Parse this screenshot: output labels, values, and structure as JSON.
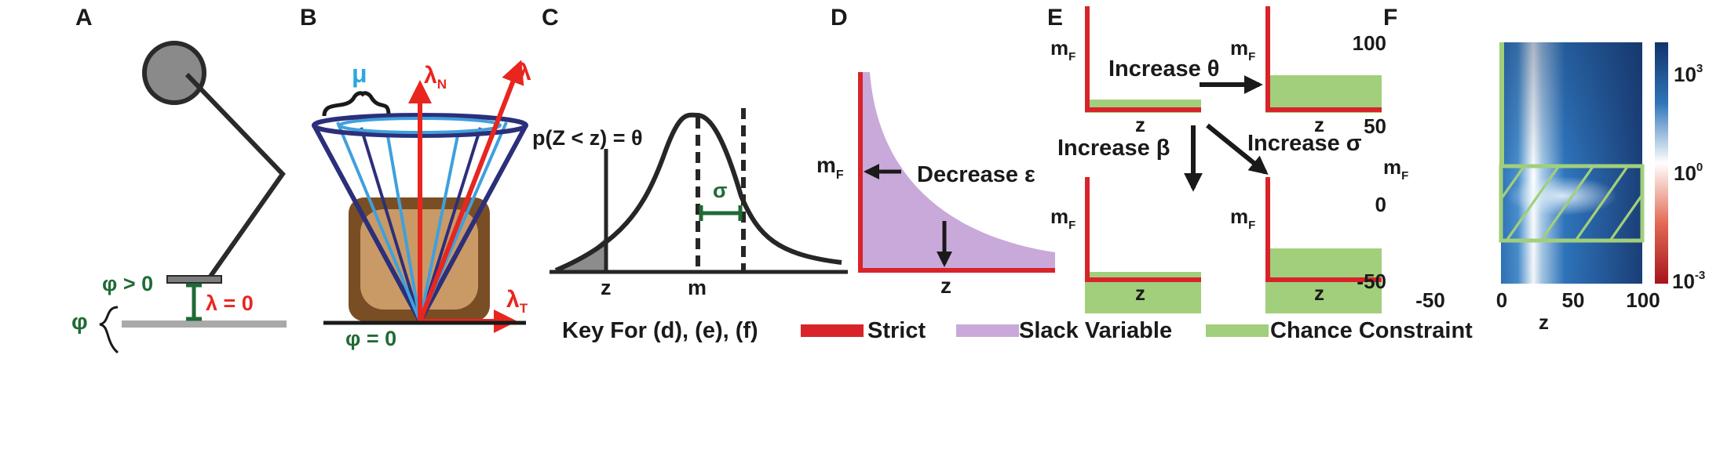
{
  "panels": {
    "a": {
      "label": "A",
      "phi_gt": "φ > 0",
      "phi": "φ",
      "lambda_zero": "λ = 0"
    },
    "b": {
      "label": "B",
      "mu": "μ",
      "lambda_n": "λ",
      "lambda_n_sub": "N",
      "lambda": "λ",
      "lambda_t": "λ",
      "lambda_t_sub": "T",
      "phi_zero": "φ = 0"
    },
    "c": {
      "label": "C",
      "prob": "p(Z < z) = θ",
      "sigma": "σ",
      "z": "z",
      "m": "m"
    },
    "d": {
      "label": "D",
      "mf": "m",
      "mf_sub": "F",
      "decrease": "Decrease ε",
      "z": "z"
    },
    "e": {
      "label": "E",
      "mf": "m",
      "mf_sub": "F",
      "z": "z",
      "inc_theta": "Increase θ",
      "inc_beta": "Increase β",
      "inc_sigma": "Increase σ"
    },
    "f": {
      "label": "F",
      "mf": "m",
      "mf_sub": "F",
      "z": "z",
      "y_ticks": [
        "100",
        "50",
        "0",
        "-50"
      ],
      "x_ticks": [
        "-50",
        "0",
        "50",
        "100"
      ],
      "cbar_ticks": [
        {
          "base": "10",
          "exp": "3"
        },
        {
          "base": "10",
          "exp": "0"
        },
        {
          "base": "10",
          "exp": "-3"
        }
      ]
    }
  },
  "key": {
    "title": "Key For (d), (e), (f)",
    "items": [
      {
        "label": "Strict",
        "color": "#d8232a"
      },
      {
        "label": "Slack Variable",
        "color": "#c9a9d9"
      },
      {
        "label": "Chance Constraint",
        "color": "#a1cf7c"
      }
    ]
  },
  "colors": {
    "strict": "#d8232a",
    "slack": "#c9a9d9",
    "chance": "#a1cf7c",
    "cone": "#2c2f7a",
    "light_blue": "#3fa0dd",
    "arrow_red": "#e8261f",
    "green_dark": "#1f6b35",
    "box_brown": "#7a4e24",
    "box_tan": "#c99a66"
  }
}
